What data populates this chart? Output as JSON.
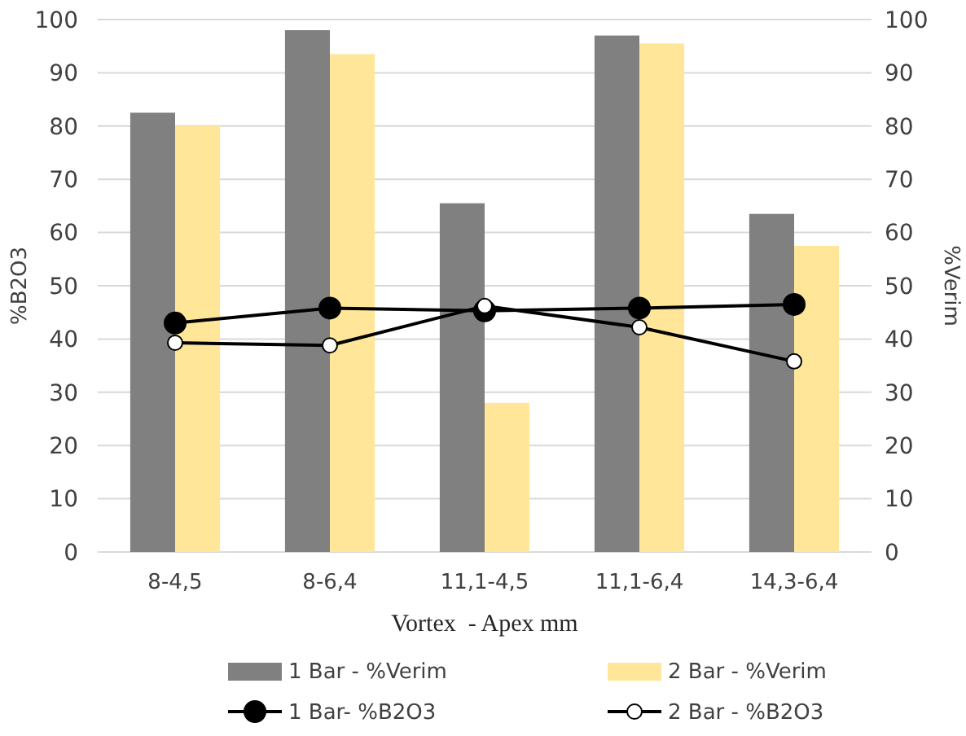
{
  "chart_data": {
    "type": "bar",
    "xlabel": "Vortex  - Apex mm",
    "ylabel": "%B2O3",
    "y2label": "%Verim",
    "categories": [
      "8-4,5",
      "8-6,4",
      "11,1-4,5",
      "11,1-6,4",
      "14,3-6,4"
    ],
    "series": [
      {
        "name": "1 Bar - %Verim",
        "color": "#808080",
        "values": [
          82.5,
          98,
          65.5,
          97,
          63.5
        ]
      },
      {
        "name": "2 Bar - %Verim",
        "color": "#ffe699",
        "values": [
          80,
          93.5,
          28,
          95.5,
          57.5
        ]
      },
      {
        "name": "1 Bar- %B2O3",
        "type": "line",
        "color": "#000000",
        "marker": "circle",
        "values": [
          43,
          45.8,
          45.3,
          45.8,
          46.5
        ]
      },
      {
        "name": "2 Bar - %B2O3",
        "type": "line",
        "color": "#000000",
        "marker": "circle",
        "values": [
          39.3,
          38.8,
          46.2,
          42.2,
          35.8
        ]
      }
    ],
    "ylim": [
      0,
      100
    ],
    "yticks": [
      0,
      10,
      20,
      30,
      40,
      50,
      60,
      70,
      80,
      90,
      100
    ],
    "y2lim": [
      0,
      100
    ],
    "y2ticks": [
      0,
      10,
      20,
      30,
      40,
      50,
      60,
      70,
      80,
      90,
      100
    ],
    "grid": "y",
    "legend": "bottom"
  }
}
